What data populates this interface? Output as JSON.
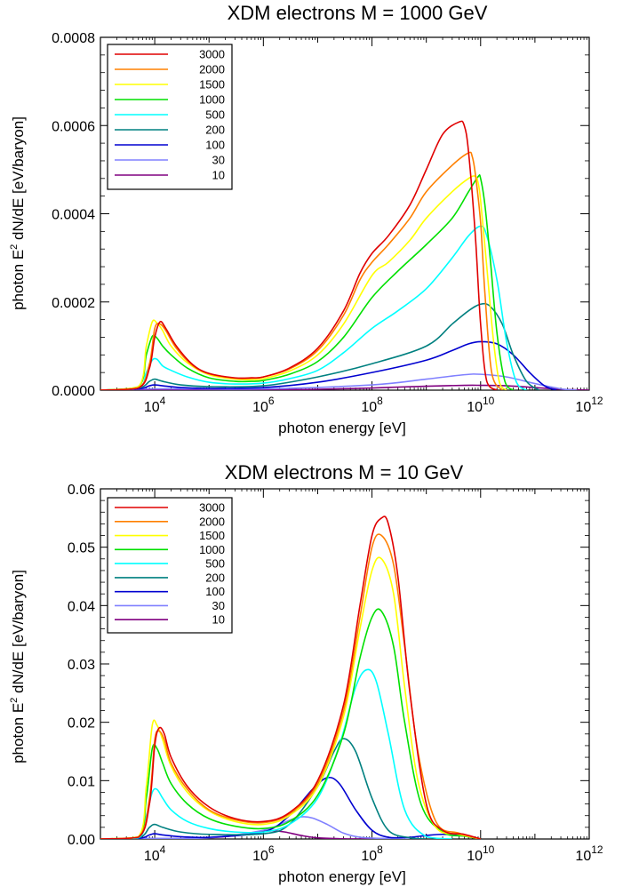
{
  "chart_data": [
    {
      "type": "line",
      "title": "XDM electrons    M = 1000 GeV",
      "xlabel": "photon energy [eV]",
      "ylabel_parts": [
        "photon E",
        "2",
        " dN/dE [eV/baryon]"
      ],
      "xscale": "log",
      "xlim": [
        1000,
        1000000000000
      ],
      "ylim": [
        0,
        0.0008
      ],
      "yticks": [
        0,
        0.0002,
        0.0004,
        0.0006,
        0.0008
      ],
      "ytick_labels": [
        "0.0000",
        "0.0002",
        "0.0004",
        "0.0006",
        "0.0008"
      ],
      "xticks": [
        4,
        6,
        8,
        10,
        12
      ],
      "xtick_base": "10",
      "legend_position": "top-left",
      "series": [
        {
          "name": "3000",
          "color": "#e00000",
          "x": [
            1000,
            5000,
            8000,
            10000,
            12500,
            16000,
            25000,
            50000,
            100000,
            300000,
            600000,
            1000000,
            3000000,
            10000000,
            30000000,
            60000000,
            100000000,
            200000000,
            500000000,
            1000000000,
            2000000000,
            4000000000,
            5000000000,
            6000000000,
            8000000000,
            10000000000,
            13000000000,
            20000000000
          ],
          "y": [
            0,
            5e-06,
            5e-05,
            0.00012,
            0.000155,
            0.00014,
            0.0001,
            5.8e-05,
            3.8e-05,
            2.8e-05,
            2.8e-05,
            3e-05,
            5e-05,
            9.5e-05,
            0.00018,
            0.000265,
            0.00031,
            0.00035,
            0.00042,
            0.0005,
            0.00058,
            0.000608,
            0.0006,
            0.00054,
            0.00035,
            0.00015,
            2e-05,
            0
          ]
        },
        {
          "name": "2000",
          "color": "#ff8000",
          "x": [
            1000,
            5000,
            8000,
            10000,
            12500,
            16000,
            25000,
            50000,
            100000,
            300000,
            600000,
            1000000,
            3000000,
            10000000,
            30000000,
            60000000,
            100000000,
            200000000,
            500000000,
            1000000000,
            3000000000,
            6000000000,
            7000000000,
            8000000000,
            10000000000,
            12000000000,
            16000000000,
            25000000000
          ],
          "y": [
            0,
            5e-06,
            6e-05,
            0.00014,
            0.00015,
            0.000135,
            9.5e-05,
            5.6e-05,
            3.7e-05,
            2.7e-05,
            2.7e-05,
            3e-05,
            4.8e-05,
            9e-05,
            0.00017,
            0.00025,
            0.00029,
            0.00033,
            0.00039,
            0.00045,
            0.00051,
            0.000538,
            0.00053,
            0.00049,
            0.00038,
            0.00022,
            4e-05,
            0
          ]
        },
        {
          "name": "1500",
          "color": "#ffff00",
          "x": [
            1000,
            5000,
            7000,
            9000,
            11000,
            14000,
            20000,
            40000,
            100000,
            300000,
            600000,
            1000000,
            3000000,
            10000000,
            30000000,
            100000000,
            200000000,
            500000000,
            1000000000,
            3000000000,
            6000000000,
            8000000000,
            9000000000,
            10000000000,
            13000000000,
            17000000000,
            22000000000,
            30000000000
          ],
          "y": [
            0,
            8e-06,
            0.0001,
            0.000155,
            0.000152,
            0.000135,
            0.0001,
            6.2e-05,
            3.5e-05,
            2.5e-05,
            2.4e-05,
            2.6e-05,
            4.3e-05,
            8e-05,
            0.00015,
            0.00026,
            0.00029,
            0.00034,
            0.00039,
            0.00045,
            0.00048,
            0.000485,
            0.00047,
            0.00043,
            0.00028,
            0.00012,
            2e-05,
            0
          ]
        },
        {
          "name": "1000",
          "color": "#00e000",
          "x": [
            1000,
            5000,
            7000,
            9000,
            11000,
            14000,
            20000,
            40000,
            100000,
            300000,
            600000,
            1000000,
            3000000,
            10000000,
            30000000,
            100000000,
            300000000,
            1000000000,
            3000000000,
            6000000000,
            9000000000,
            10000000000,
            12000000000,
            15000000000,
            20000000000,
            28000000000,
            40000000000
          ],
          "y": [
            0,
            8e-06,
            8e-05,
            0.000122,
            0.000118,
            0.0001,
            8e-05,
            5e-05,
            2.8e-05,
            2e-05,
            2e-05,
            2.2e-05,
            3.6e-05,
            6.5e-05,
            0.00012,
            0.00021,
            0.00027,
            0.00033,
            0.00039,
            0.00045,
            0.000484,
            0.00048,
            0.00042,
            0.0003,
            0.00013,
            2e-05,
            0
          ]
        },
        {
          "name": "500",
          "color": "#00ffff",
          "x": [
            1000,
            5000,
            7000,
            9000,
            11000,
            14000,
            20000,
            40000,
            100000,
            300000,
            1000000,
            3000000,
            10000000,
            30000000,
            100000000,
            300000000,
            1000000000,
            3000000000,
            6000000000,
            10000000000,
            13000000000,
            20000000000,
            30000000000,
            45000000000,
            70000000000
          ],
          "y": [
            0,
            5e-06,
            4e-05,
            6.8e-05,
            7e-05,
            5.5e-05,
            4.5e-05,
            3e-05,
            1.8e-05,
            1.4e-05,
            1.6e-05,
            2.6e-05,
            4.5e-05,
            8.5e-05,
            0.00014,
            0.00018,
            0.00023,
            0.0003,
            0.00035,
            0.000372,
            0.00035,
            0.00025,
            0.00011,
            2e-05,
            0
          ]
        },
        {
          "name": "200",
          "color": "#008080",
          "x": [
            1000,
            5000,
            8000,
            10000,
            14000,
            30000,
            100000,
            1000000,
            10000000,
            100000000,
            1000000000,
            3000000000,
            6000000000,
            10000000000,
            15000000000,
            25000000000,
            40000000000,
            70000000000,
            120000000000
          ],
          "y": [
            0,
            5e-06,
            2e-05,
            2.5e-05,
            2e-05,
            1.2e-05,
            8e-06,
            1e-05,
            3e-05,
            6e-05,
            0.0001,
            0.00015,
            0.00018,
            0.000195,
            0.00019,
            0.00015,
            8e-05,
            2e-05,
            0
          ]
        },
        {
          "name": "100",
          "color": "#0000d0",
          "x": [
            1000,
            5000,
            8000,
            10000,
            14000,
            30000,
            100000,
            1000000,
            10000000,
            100000000,
            1000000000,
            3000000000,
            6000000000,
            10000000000,
            20000000000,
            40000000000,
            80000000000,
            150000000000,
            250000000000
          ],
          "y": [
            0,
            3e-06,
            1e-05,
            1.2e-05,
            1e-05,
            6e-06,
            4e-06,
            6e-06,
            1.8e-05,
            4e-05,
            6.8e-05,
            9e-05,
            0.000105,
            0.00011,
            0.000105,
            8e-05,
            4e-05,
            1e-05,
            0
          ]
        },
        {
          "name": "30",
          "color": "#8080ff",
          "x": [
            1000,
            10000,
            1000000,
            100000000,
            1000000000,
            5000000000,
            10000000000,
            30000000000,
            100000000000,
            300000000000,
            600000000000
          ],
          "y": [
            0,
            3e-06,
            3e-06,
            1.2e-05,
            2.5e-05,
            3.5e-05,
            3.6e-05,
            3e-05,
            1.5e-05,
            3e-06,
            0
          ]
        },
        {
          "name": "10",
          "color": "#800080",
          "x": [
            1000,
            1000000,
            10000000,
            100000000,
            1000000000,
            5000000000,
            10000000000,
            30000000000,
            100000000000,
            300000000000,
            1000000000000
          ],
          "y": [
            0,
            1e-06,
            2e-06,
            5e-06,
            9e-06,
            1.1e-05,
            1.1e-05,
            1e-05,
            6e-06,
            2e-06,
            0
          ]
        }
      ]
    },
    {
      "type": "line",
      "title": "XDM electrons    M =   10 GeV",
      "xlabel": "photon energy [eV]",
      "ylabel_parts": [
        "photon E",
        "2",
        " dN/dE [eV/baryon]"
      ],
      "xscale": "log",
      "xlim": [
        1000,
        1000000000000
      ],
      "ylim": [
        0,
        0.06
      ],
      "yticks": [
        0,
        0.01,
        0.02,
        0.03,
        0.04,
        0.05,
        0.06
      ],
      "ytick_labels": [
        "0.00",
        "0.01",
        "0.02",
        "0.03",
        "0.04",
        "0.05",
        "0.06"
      ],
      "xticks": [
        4,
        6,
        8,
        10,
        12
      ],
      "xtick_base": "10",
      "legend_position": "top-left",
      "series": [
        {
          "name": "3000",
          "color": "#e00000",
          "x": [
            1000,
            5000,
            8000,
            10000,
            12000,
            15000,
            20000,
            40000,
            100000,
            300000,
            1000000,
            3000000,
            10000000,
            30000000,
            60000000,
            100000000,
            150000000,
            200000000,
            300000000,
            500000000,
            1000000000,
            2000000000,
            5000000000,
            10000000000
          ],
          "y": [
            0,
            0.0003,
            0.006,
            0.016,
            0.019,
            0.018,
            0.014,
            0.009,
            0.0055,
            0.0035,
            0.003,
            0.0045,
            0.01,
            0.023,
            0.04,
            0.052,
            0.055,
            0.054,
            0.045,
            0.025,
            0.006,
            0.0015,
            0.0008,
            0
          ]
        },
        {
          "name": "2000",
          "color": "#ff8000",
          "x": [
            1000,
            5000,
            8000,
            10000,
            12000,
            15000,
            20000,
            40000,
            100000,
            300000,
            1000000,
            3000000,
            10000000,
            30000000,
            60000000,
            100000000,
            150000000,
            250000000,
            400000000,
            700000000,
            1500000000,
            4000000000,
            10000000000
          ],
          "y": [
            0,
            0.0003,
            0.007,
            0.017,
            0.0185,
            0.017,
            0.013,
            0.0085,
            0.005,
            0.0033,
            0.0028,
            0.0043,
            0.0095,
            0.022,
            0.038,
            0.05,
            0.052,
            0.047,
            0.033,
            0.015,
            0.003,
            0.001,
            0
          ]
        },
        {
          "name": "1500",
          "color": "#ffff00",
          "x": [
            1000,
            5000,
            7000,
            9000,
            11000,
            14000,
            20000,
            40000,
            100000,
            300000,
            1000000,
            3000000,
            10000000,
            30000000,
            60000000,
            100000000,
            150000000,
            250000000,
            400000000,
            700000000,
            1500000000,
            4000000000,
            10000000000
          ],
          "y": [
            0,
            0.0004,
            0.009,
            0.0195,
            0.0195,
            0.017,
            0.0125,
            0.008,
            0.0048,
            0.003,
            0.0025,
            0.004,
            0.009,
            0.021,
            0.036,
            0.046,
            0.048,
            0.042,
            0.026,
            0.01,
            0.002,
            0.0008,
            0
          ]
        },
        {
          "name": "1000",
          "color": "#00e000",
          "x": [
            1000,
            5000,
            7000,
            9000,
            11000,
            14000,
            20000,
            40000,
            100000,
            300000,
            1000000,
            3000000,
            10000000,
            30000000,
            60000000,
            100000000,
            150000000,
            250000000,
            400000000,
            800000000,
            2000000000,
            5000000000,
            10000000000
          ],
          "y": [
            0,
            0.0003,
            0.007,
            0.0155,
            0.0155,
            0.013,
            0.0095,
            0.006,
            0.0035,
            0.0022,
            0.0018,
            0.003,
            0.0075,
            0.018,
            0.031,
            0.038,
            0.039,
            0.033,
            0.02,
            0.006,
            0.0012,
            0.0005,
            0
          ]
        },
        {
          "name": "500",
          "color": "#00ffff",
          "x": [
            1000,
            5000,
            7000,
            9000,
            11000,
            14000,
            20000,
            40000,
            100000,
            300000,
            1000000,
            3000000,
            10000000,
            25000000,
            50000000,
            80000000,
            120000000,
            200000000,
            400000000,
            1000000000,
            3000000000
          ],
          "y": [
            0,
            0.0002,
            0.004,
            0.008,
            0.0085,
            0.007,
            0.005,
            0.003,
            0.0018,
            0.0012,
            0.0012,
            0.0025,
            0.007,
            0.016,
            0.026,
            0.029,
            0.027,
            0.018,
            0.005,
            0.0004,
            0
          ]
        },
        {
          "name": "200",
          "color": "#008080",
          "x": [
            1000,
            5000,
            8000,
            10000,
            14000,
            30000,
            100000,
            1000000,
            3000000,
            10000000,
            20000000,
            30000000,
            50000000,
            100000000,
            200000000,
            500000000,
            1000000000
          ],
          "y": [
            0,
            0.0002,
            0.002,
            0.0025,
            0.002,
            0.0012,
            0.0008,
            0.0009,
            0.0025,
            0.009,
            0.015,
            0.0172,
            0.015,
            0.007,
            0.0015,
            0.0002,
            0
          ]
        },
        {
          "name": "100",
          "color": "#0000d0",
          "x": [
            1000,
            5000,
            8000,
            10000,
            14000,
            30000,
            100000,
            1000000,
            3000000,
            8000000,
            15000000,
            25000000,
            50000000,
            100000000,
            200000000,
            500000000,
            1000000000,
            2000000000,
            5000000000,
            10000000000
          ],
          "y": [
            0,
            0.0001,
            0.0007,
            0.0009,
            0.0007,
            0.0004,
            0.0003,
            0.0012,
            0.004,
            0.0085,
            0.0105,
            0.0095,
            0.005,
            0.0015,
            0.0003,
            0.0003,
            0.0006,
            0.0008,
            0.0005,
            0
          ]
        },
        {
          "name": "30",
          "color": "#8080ff",
          "x": [
            1000,
            10000,
            100000,
            1000000,
            3000000,
            5000000,
            8000000,
            15000000,
            30000000,
            60000000,
            150000000,
            500000000
          ],
          "y": [
            0,
            0.0001,
            0.0002,
            0.0015,
            0.0032,
            0.0038,
            0.0036,
            0.0025,
            0.001,
            0.0003,
            0.0001,
            0
          ]
        },
        {
          "name": "10",
          "color": "#800080",
          "x": [
            1000,
            10000,
            100000,
            500000,
            1000000,
            1500000,
            2500000,
            5000000,
            10000000,
            30000000,
            100000000
          ],
          "y": [
            0,
            5e-05,
            0.0002,
            0.0008,
            0.0013,
            0.0014,
            0.0012,
            0.0006,
            0.0002,
            3e-05,
            0
          ]
        }
      ]
    }
  ]
}
